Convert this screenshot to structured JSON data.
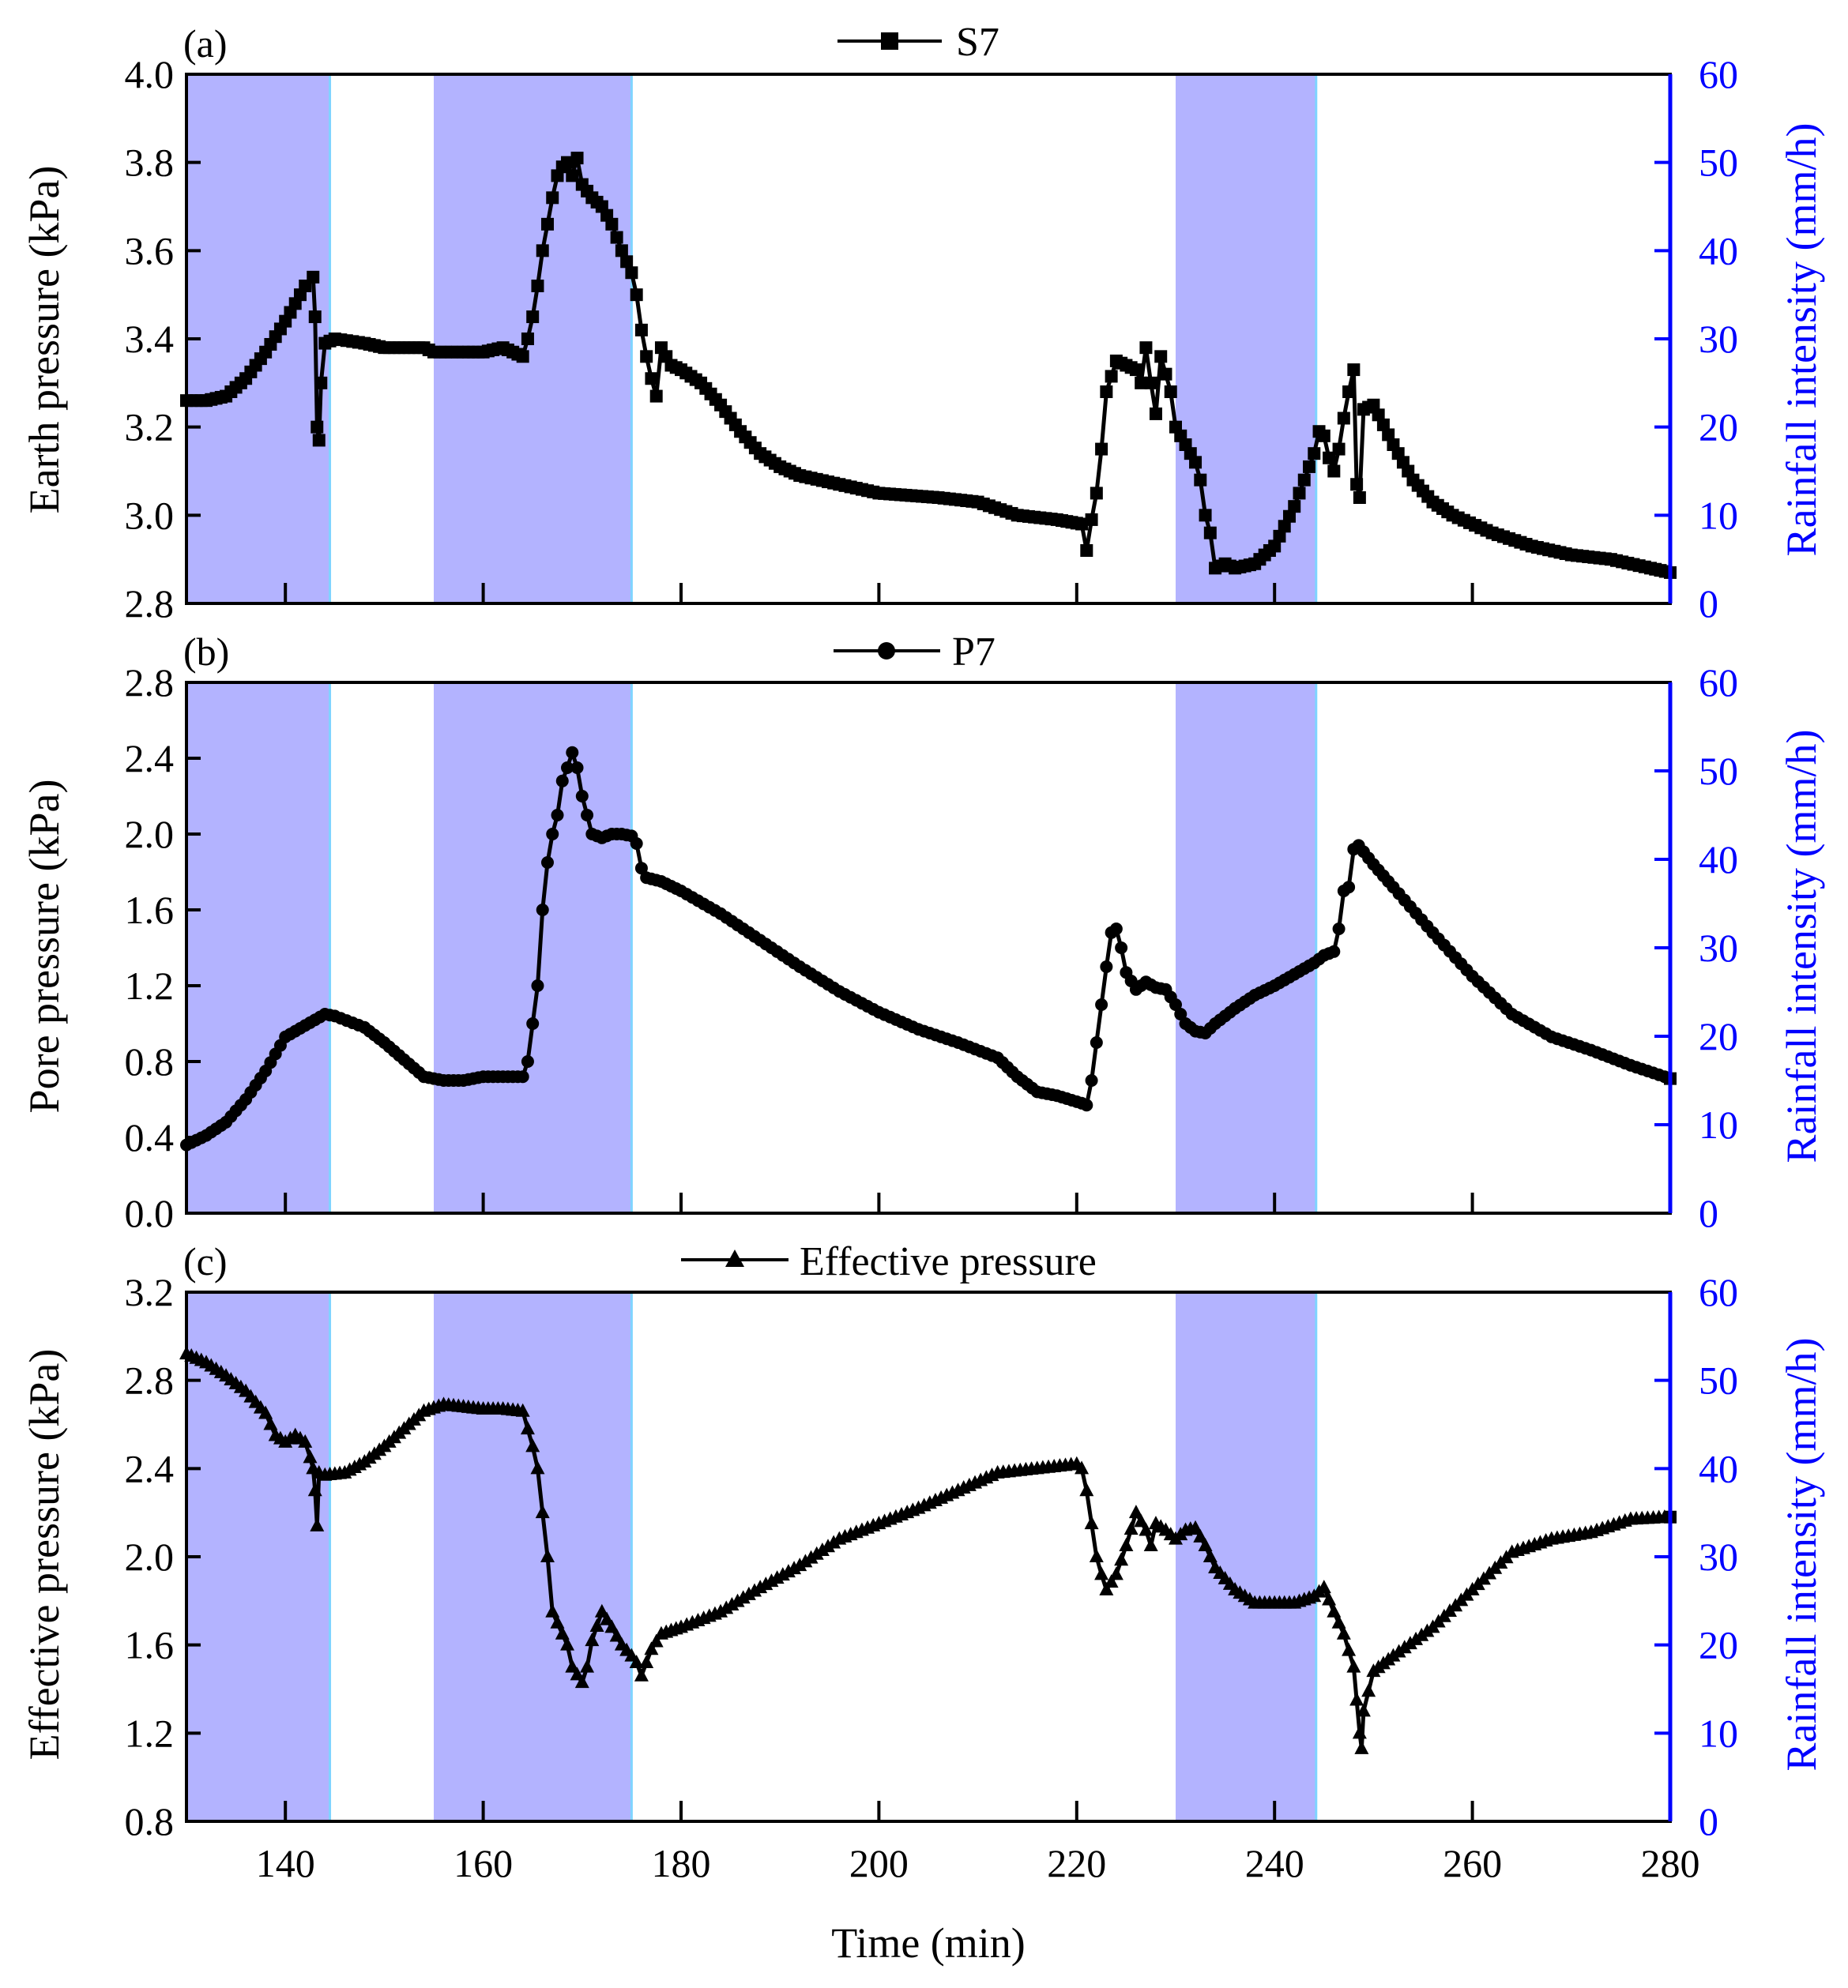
{
  "chart_data": [
    {
      "type": "line",
      "panel_label": "(a)",
      "legend": "S7",
      "marker": "square",
      "ylabel_left": "Earth pressure (kPa)",
      "ylabel_right": "Rainfall intensity (mm/h)",
      "xlim": [
        130,
        280
      ],
      "ylim_left": [
        2.8,
        4.0
      ],
      "yticks_left": [
        "2.8",
        "3.0",
        "3.2",
        "3.4",
        "3.6",
        "3.8",
        "4.0"
      ],
      "ylim_right": [
        0,
        60
      ],
      "yticks_right": [
        "0",
        "10",
        "20",
        "30",
        "40",
        "50",
        "60"
      ],
      "rainfall_intervals": [
        [
          130,
          144.5
        ],
        [
          155,
          175
        ],
        [
          230,
          244.2
        ]
      ],
      "points": [
        [
          130,
          3.26
        ],
        [
          132,
          3.26
        ],
        [
          134,
          3.27
        ],
        [
          136,
          3.31
        ],
        [
          138,
          3.37
        ],
        [
          140,
          3.44
        ],
        [
          141,
          3.48
        ],
        [
          142,
          3.52
        ],
        [
          142.8,
          3.54
        ],
        [
          143,
          3.45
        ],
        [
          143.2,
          3.2
        ],
        [
          143.4,
          3.17
        ],
        [
          143.6,
          3.3
        ],
        [
          144,
          3.39
        ],
        [
          145,
          3.4
        ],
        [
          148,
          3.39
        ],
        [
          150,
          3.38
        ],
        [
          152,
          3.38
        ],
        [
          154,
          3.38
        ],
        [
          155,
          3.37
        ],
        [
          158,
          3.37
        ],
        [
          160,
          3.37
        ],
        [
          162,
          3.38
        ],
        [
          163,
          3.37
        ],
        [
          164,
          3.36
        ],
        [
          164.5,
          3.4
        ],
        [
          165,
          3.45
        ],
        [
          165.5,
          3.52
        ],
        [
          166,
          3.6
        ],
        [
          166.5,
          3.66
        ],
        [
          167,
          3.72
        ],
        [
          167.5,
          3.77
        ],
        [
          168,
          3.79
        ],
        [
          168.5,
          3.8
        ],
        [
          169,
          3.77
        ],
        [
          169.5,
          3.81
        ],
        [
          170,
          3.75
        ],
        [
          171,
          3.72
        ],
        [
          172,
          3.7
        ],
        [
          173,
          3.66
        ],
        [
          174,
          3.6
        ],
        [
          175,
          3.55
        ],
        [
          175.5,
          3.5
        ],
        [
          176,
          3.42
        ],
        [
          176.5,
          3.36
        ],
        [
          177,
          3.31
        ],
        [
          177.5,
          3.27
        ],
        [
          178,
          3.38
        ],
        [
          179,
          3.34
        ],
        [
          180,
          3.33
        ],
        [
          182,
          3.3
        ],
        [
          184,
          3.25
        ],
        [
          186,
          3.19
        ],
        [
          188,
          3.14
        ],
        [
          190,
          3.11
        ],
        [
          192,
          3.09
        ],
        [
          196,
          3.07
        ],
        [
          200,
          3.05
        ],
        [
          206,
          3.04
        ],
        [
          210,
          3.03
        ],
        [
          214,
          3.0
        ],
        [
          218,
          2.99
        ],
        [
          220.5,
          2.98
        ],
        [
          221,
          2.92
        ],
        [
          221.5,
          2.99
        ],
        [
          222,
          3.05
        ],
        [
          222.5,
          3.15
        ],
        [
          223,
          3.28
        ],
        [
          224,
          3.35
        ],
        [
          225,
          3.34
        ],
        [
          226,
          3.33
        ],
        [
          226.5,
          3.3
        ],
        [
          227,
          3.38
        ],
        [
          227.5,
          3.3
        ],
        [
          228,
          3.23
        ],
        [
          228.5,
          3.36
        ],
        [
          229,
          3.32
        ],
        [
          229.5,
          3.28
        ],
        [
          230,
          3.2
        ],
        [
          231,
          3.16
        ],
        [
          232,
          3.12
        ],
        [
          232.5,
          3.08
        ],
        [
          233,
          3.0
        ],
        [
          233.5,
          2.96
        ],
        [
          234,
          2.88
        ],
        [
          235,
          2.89
        ],
        [
          236,
          2.88
        ],
        [
          238,
          2.89
        ],
        [
          240,
          2.93
        ],
        [
          242,
          3.02
        ],
        [
          243,
          3.08
        ],
        [
          244,
          3.14
        ],
        [
          244.5,
          3.19
        ],
        [
          245,
          3.18
        ],
        [
          245.5,
          3.13
        ],
        [
          246,
          3.1
        ],
        [
          246.5,
          3.15
        ],
        [
          247,
          3.22
        ],
        [
          247.5,
          3.28
        ],
        [
          248,
          3.33
        ],
        [
          248.3,
          3.07
        ],
        [
          248.6,
          3.04
        ],
        [
          249,
          3.24
        ],
        [
          250,
          3.25
        ],
        [
          252,
          3.16
        ],
        [
          254,
          3.08
        ],
        [
          256,
          3.03
        ],
        [
          258,
          3.0
        ],
        [
          262,
          2.96
        ],
        [
          266,
          2.93
        ],
        [
          270,
          2.91
        ],
        [
          274,
          2.9
        ],
        [
          278,
          2.88
        ],
        [
          280,
          2.87
        ]
      ]
    },
    {
      "type": "line",
      "panel_label": "(b)",
      "legend": "P7",
      "marker": "circle",
      "ylabel_left": "Pore pressure (kPa)",
      "ylabel_right": "Rainfall intensity (mm/h)",
      "xlim": [
        130,
        280
      ],
      "ylim_left": [
        0.0,
        2.8
      ],
      "yticks_left": [
        "0.0",
        "0.4",
        "0.8",
        "1.2",
        "1.6",
        "2.0",
        "2.4",
        "2.8"
      ],
      "ylim_right": [
        0,
        60
      ],
      "yticks_right": [
        "0",
        "10",
        "20",
        "30",
        "40",
        "50",
        "60"
      ],
      "rainfall_intervals": [
        [
          130,
          144.5
        ],
        [
          155,
          175
        ],
        [
          230,
          244.2
        ]
      ],
      "points": [
        [
          130,
          0.36
        ],
        [
          132,
          0.41
        ],
        [
          134,
          0.48
        ],
        [
          136,
          0.6
        ],
        [
          138,
          0.75
        ],
        [
          140,
          0.93
        ],
        [
          142,
          0.99
        ],
        [
          144,
          1.05
        ],
        [
          145,
          1.04
        ],
        [
          148,
          0.98
        ],
        [
          150,
          0.9
        ],
        [
          152,
          0.81
        ],
        [
          154,
          0.72
        ],
        [
          156,
          0.7
        ],
        [
          158,
          0.7
        ],
        [
          160,
          0.72
        ],
        [
          162,
          0.72
        ],
        [
          164,
          0.72
        ],
        [
          164.5,
          0.8
        ],
        [
          165,
          1.0
        ],
        [
          165.5,
          1.2
        ],
        [
          166,
          1.6
        ],
        [
          166.5,
          1.85
        ],
        [
          167,
          2.0
        ],
        [
          167.5,
          2.1
        ],
        [
          168,
          2.28
        ],
        [
          168.5,
          2.35
        ],
        [
          169,
          2.43
        ],
        [
          169.5,
          2.35
        ],
        [
          170,
          2.2
        ],
        [
          170.5,
          2.1
        ],
        [
          171,
          2.0
        ],
        [
          172,
          1.98
        ],
        [
          173,
          2.0
        ],
        [
          174,
          2.0
        ],
        [
          175,
          1.99
        ],
        [
          175.5,
          1.95
        ],
        [
          176,
          1.82
        ],
        [
          176.5,
          1.77
        ],
        [
          178,
          1.75
        ],
        [
          180,
          1.7
        ],
        [
          184,
          1.58
        ],
        [
          188,
          1.44
        ],
        [
          192,
          1.3
        ],
        [
          196,
          1.17
        ],
        [
          200,
          1.06
        ],
        [
          204,
          0.97
        ],
        [
          208,
          0.9
        ],
        [
          212,
          0.82
        ],
        [
          214,
          0.72
        ],
        [
          216,
          0.64
        ],
        [
          218,
          0.62
        ],
        [
          220.5,
          0.58
        ],
        [
          221,
          0.57
        ],
        [
          221.5,
          0.7
        ],
        [
          222,
          0.9
        ],
        [
          222.5,
          1.1
        ],
        [
          223,
          1.3
        ],
        [
          223.5,
          1.48
        ],
        [
          224,
          1.5
        ],
        [
          224.5,
          1.4
        ],
        [
          225,
          1.27
        ],
        [
          226,
          1.18
        ],
        [
          227,
          1.22
        ],
        [
          228,
          1.19
        ],
        [
          229,
          1.18
        ],
        [
          230,
          1.1
        ],
        [
          231,
          1.0
        ],
        [
          232,
          0.96
        ],
        [
          233,
          0.95
        ],
        [
          234,
          1.0
        ],
        [
          236,
          1.08
        ],
        [
          238,
          1.15
        ],
        [
          240,
          1.2
        ],
        [
          242,
          1.26
        ],
        [
          244,
          1.32
        ],
        [
          245,
          1.36
        ],
        [
          246,
          1.38
        ],
        [
          246.5,
          1.5
        ],
        [
          247,
          1.7
        ],
        [
          247.5,
          1.72
        ],
        [
          248,
          1.92
        ],
        [
          248.5,
          1.94
        ],
        [
          250,
          1.84
        ],
        [
          252,
          1.72
        ],
        [
          256,
          1.48
        ],
        [
          260,
          1.25
        ],
        [
          264,
          1.05
        ],
        [
          268,
          0.93
        ],
        [
          272,
          0.86
        ],
        [
          276,
          0.78
        ],
        [
          280,
          0.71
        ]
      ]
    },
    {
      "type": "line",
      "panel_label": "(c)",
      "legend": "Effective pressure",
      "marker": "triangle",
      "ylabel_left": "Effective pressure (kPa)",
      "ylabel_right": "Rainfall intensity (mm/h)",
      "xlabel": "Time (min)",
      "xlim": [
        130,
        280
      ],
      "xticks": [
        "140",
        "160",
        "180",
        "200",
        "220",
        "240",
        "260",
        "280"
      ],
      "ylim_left": [
        0.8,
        3.2
      ],
      "yticks_left": [
        "0.8",
        "1.2",
        "1.6",
        "2.0",
        "2.4",
        "2.8",
        "3.2"
      ],
      "ylim_right": [
        0,
        60
      ],
      "yticks_right": [
        "0",
        "10",
        "20",
        "30",
        "40",
        "50",
        "60"
      ],
      "rainfall_intervals": [
        [
          130,
          144.5
        ],
        [
          155,
          175
        ],
        [
          230,
          244.2
        ]
      ],
      "points": [
        [
          130,
          2.92
        ],
        [
          132,
          2.88
        ],
        [
          134,
          2.82
        ],
        [
          136,
          2.75
        ],
        [
          138,
          2.65
        ],
        [
          139,
          2.55
        ],
        [
          140,
          2.52
        ],
        [
          141,
          2.55
        ],
        [
          142,
          2.52
        ],
        [
          142.5,
          2.45
        ],
        [
          142.8,
          2.4
        ],
        [
          143,
          2.3
        ],
        [
          143.2,
          2.14
        ],
        [
          143.4,
          2.38
        ],
        [
          144,
          2.37
        ],
        [
          146,
          2.38
        ],
        [
          148,
          2.43
        ],
        [
          150,
          2.5
        ],
        [
          152,
          2.58
        ],
        [
          154,
          2.66
        ],
        [
          156,
          2.69
        ],
        [
          158,
          2.68
        ],
        [
          160,
          2.67
        ],
        [
          162,
          2.67
        ],
        [
          164,
          2.66
        ],
        [
          164.5,
          2.58
        ],
        [
          165,
          2.5
        ],
        [
          165.5,
          2.4
        ],
        [
          166,
          2.2
        ],
        [
          166.5,
          2.0
        ],
        [
          167,
          1.75
        ],
        [
          168,
          1.65
        ],
        [
          168.5,
          1.6
        ],
        [
          169,
          1.5
        ],
        [
          170,
          1.43
        ],
        [
          170.5,
          1.5
        ],
        [
          171,
          1.62
        ],
        [
          172,
          1.75
        ],
        [
          173,
          1.68
        ],
        [
          174,
          1.6
        ],
        [
          175,
          1.55
        ],
        [
          175.5,
          1.52
        ],
        [
          176,
          1.46
        ],
        [
          176.5,
          1.52
        ],
        [
          177,
          1.58
        ],
        [
          178,
          1.65
        ],
        [
          180,
          1.68
        ],
        [
          184,
          1.75
        ],
        [
          188,
          1.86
        ],
        [
          192,
          1.96
        ],
        [
          196,
          2.08
        ],
        [
          200,
          2.15
        ],
        [
          204,
          2.22
        ],
        [
          208,
          2.3
        ],
        [
          212,
          2.38
        ],
        [
          216,
          2.4
        ],
        [
          220,
          2.42
        ],
        [
          220.5,
          2.4
        ],
        [
          221,
          2.3
        ],
        [
          221.5,
          2.15
        ],
        [
          222,
          2.0
        ],
        [
          222.5,
          1.92
        ],
        [
          223,
          1.85
        ],
        [
          224,
          1.92
        ],
        [
          225,
          2.05
        ],
        [
          226,
          2.2
        ],
        [
          226.5,
          2.16
        ],
        [
          227,
          2.12
        ],
        [
          227.5,
          2.05
        ],
        [
          228,
          2.15
        ],
        [
          229,
          2.12
        ],
        [
          230,
          2.08
        ],
        [
          231,
          2.12
        ],
        [
          232,
          2.13
        ],
        [
          233,
          2.05
        ],
        [
          234,
          1.95
        ],
        [
          236,
          1.85
        ],
        [
          238,
          1.79
        ],
        [
          240,
          1.79
        ],
        [
          242,
          1.79
        ],
        [
          244,
          1.82
        ],
        [
          245,
          1.86
        ],
        [
          246,
          1.75
        ],
        [
          247,
          1.65
        ],
        [
          248,
          1.5
        ],
        [
          248.3,
          1.35
        ],
        [
          248.6,
          1.2
        ],
        [
          248.8,
          1.13
        ],
        [
          249,
          1.3
        ],
        [
          250,
          1.48
        ],
        [
          252,
          1.55
        ],
        [
          256,
          1.68
        ],
        [
          260,
          1.85
        ],
        [
          264,
          2.02
        ],
        [
          268,
          2.08
        ],
        [
          272,
          2.11
        ],
        [
          276,
          2.17
        ],
        [
          280,
          2.18
        ]
      ]
    }
  ]
}
